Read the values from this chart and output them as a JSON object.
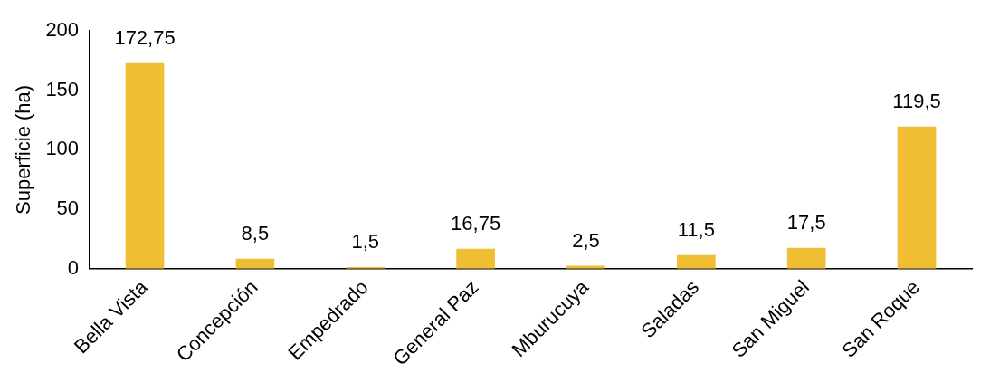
{
  "chart_data": {
    "type": "bar",
    "ylabel": "Superficie (ha)",
    "categories": [
      "Bella Vista",
      "Concepción",
      "Empedrado",
      "General Paz",
      "Mburucuya",
      "Saladas",
      "San Miguel",
      "San Roque"
    ],
    "values": [
      172.75,
      8.5,
      1.5,
      16.75,
      2.5,
      11.5,
      17.5,
      119.5
    ],
    "value_labels": [
      "172,75",
      "8,5",
      "1,5",
      "16,75",
      "2,5",
      "11,5",
      "17,5",
      "119,5"
    ],
    "color": "#f0be32",
    "ylim": [
      0,
      200
    ],
    "yticks": [
      0,
      50,
      100,
      150,
      200
    ],
    "grid": false,
    "legend": false
  }
}
